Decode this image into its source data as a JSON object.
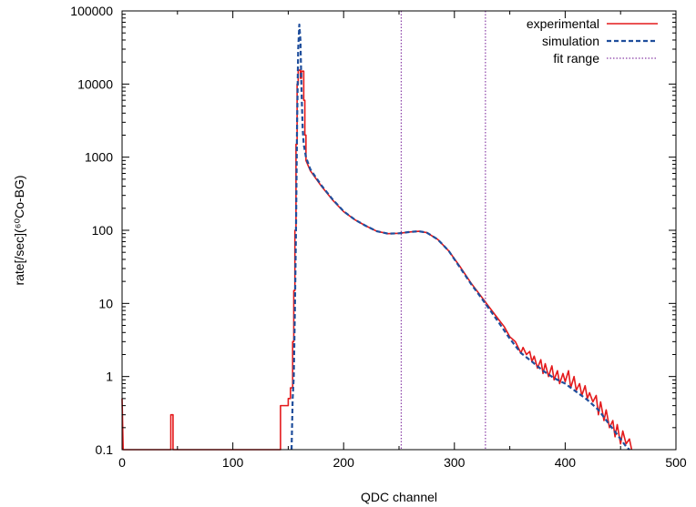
{
  "chart_data": {
    "type": "line",
    "xlabel": "QDC channel",
    "ylabel": "rate[/sec](⁶⁰Co-BG)",
    "xlim": [
      0,
      500
    ],
    "ylim": [
      0.1,
      100000
    ],
    "yscale": "log",
    "grid": false,
    "legend_position": "top-right",
    "x_ticks": [
      "0",
      "100",
      "200",
      "300",
      "400",
      "500"
    ],
    "y_ticks": [
      "0.1",
      "1",
      "10",
      "100",
      "1000",
      "10000",
      "100000"
    ],
    "colors": {
      "experimental": "#e41a1c",
      "simulation": "#1f4e9c",
      "fit_range": "#8a3fa6"
    },
    "series": [
      {
        "name": "experimental",
        "style": "solid-step",
        "points": [
          [
            0,
            0.5
          ],
          [
            1,
            0.1
          ],
          [
            44,
            0.1
          ],
          [
            44,
            0.3
          ],
          [
            46,
            0.3
          ],
          [
            46,
            0.1
          ],
          [
            143,
            0.1
          ],
          [
            143,
            0.4
          ],
          [
            150,
            0.4
          ],
          [
            150,
            0.5
          ],
          [
            152,
            0.5
          ],
          [
            152,
            0.7
          ],
          [
            154,
            0.7
          ],
          [
            154,
            3
          ],
          [
            155,
            3
          ],
          [
            155,
            15
          ],
          [
            156,
            15
          ],
          [
            156,
            100
          ],
          [
            157,
            100
          ],
          [
            157,
            1500
          ],
          [
            158,
            1500
          ],
          [
            158,
            10000
          ],
          [
            159,
            10000
          ],
          [
            159,
            15500
          ],
          [
            161,
            15500
          ],
          [
            161,
            12000
          ],
          [
            162,
            12000
          ],
          [
            162,
            15000
          ],
          [
            164,
            15000
          ],
          [
            164,
            6000
          ],
          [
            165,
            6000
          ],
          [
            165,
            2000
          ],
          [
            166,
            2000
          ],
          [
            166,
            900
          ],
          [
            170,
            650
          ],
          [
            180,
            400
          ],
          [
            190,
            260
          ],
          [
            200,
            180
          ],
          [
            210,
            140
          ],
          [
            220,
            115
          ],
          [
            230,
            97
          ],
          [
            240,
            90
          ],
          [
            250,
            91
          ],
          [
            260,
            95
          ],
          [
            268,
            97
          ],
          [
            275,
            93
          ],
          [
            285,
            75
          ],
          [
            295,
            52
          ],
          [
            305,
            32
          ],
          [
            315,
            19
          ],
          [
            325,
            12
          ],
          [
            330,
            9.5
          ],
          [
            340,
            6
          ],
          [
            345,
            4.8
          ],
          [
            350,
            3.5
          ],
          [
            355,
            3
          ],
          [
            360,
            2.1
          ],
          [
            362,
            2.5
          ],
          [
            365,
            2
          ],
          [
            368,
            2.2
          ],
          [
            370,
            1.6
          ],
          [
            372,
            1.9
          ],
          [
            375,
            1.3
          ],
          [
            378,
            1.7
          ],
          [
            380,
            1.1
          ],
          [
            382,
            1.5
          ],
          [
            385,
            1.0
          ],
          [
            388,
            1.4
          ],
          [
            390,
            0.9
          ],
          [
            393,
            1.2
          ],
          [
            395,
            0.8
          ],
          [
            398,
            1.1
          ],
          [
            400,
            0.85
          ],
          [
            403,
            1.2
          ],
          [
            405,
            0.7
          ],
          [
            408,
            1.0
          ],
          [
            410,
            0.65
          ],
          [
            413,
            0.8
          ],
          [
            415,
            0.55
          ],
          [
            418,
            0.75
          ],
          [
            420,
            0.5
          ],
          [
            422,
            0.6
          ],
          [
            425,
            0.45
          ],
          [
            428,
            0.55
          ],
          [
            430,
            0.3
          ],
          [
            432,
            0.45
          ],
          [
            435,
            0.25
          ],
          [
            437,
            0.35
          ],
          [
            440,
            0.2
          ],
          [
            443,
            0.25
          ],
          [
            445,
            0.15
          ],
          [
            447,
            0.22
          ],
          [
            450,
            0.12
          ],
          [
            452,
            0.18
          ],
          [
            455,
            0.12
          ],
          [
            458,
            0.14
          ],
          [
            460,
            0.1
          ]
        ]
      },
      {
        "name": "simulation",
        "style": "dashed",
        "points": [
          [
            153,
            0.1
          ],
          [
            154,
            0.5
          ],
          [
            155,
            1
          ],
          [
            156,
            8
          ],
          [
            157,
            100
          ],
          [
            158,
            3000
          ],
          [
            159,
            30000
          ],
          [
            160,
            65000
          ],
          [
            161,
            40000
          ],
          [
            162,
            8000
          ],
          [
            163,
            2500
          ],
          [
            164,
            1500
          ],
          [
            166,
            1000
          ],
          [
            170,
            680
          ],
          [
            180,
            410
          ],
          [
            190,
            265
          ],
          [
            200,
            182
          ],
          [
            210,
            140
          ],
          [
            220,
            115
          ],
          [
            230,
            97
          ],
          [
            240,
            90
          ],
          [
            250,
            91
          ],
          [
            260,
            95
          ],
          [
            268,
            97
          ],
          [
            275,
            93
          ],
          [
            285,
            75
          ],
          [
            295,
            52
          ],
          [
            305,
            31
          ],
          [
            315,
            18.5
          ],
          [
            325,
            11.5
          ],
          [
            330,
            9
          ],
          [
            340,
            5.5
          ],
          [
            350,
            3.3
          ],
          [
            360,
            2.1
          ],
          [
            370,
            1.6
          ],
          [
            380,
            1.2
          ],
          [
            390,
            0.95
          ],
          [
            400,
            0.8
          ],
          [
            410,
            0.62
          ],
          [
            420,
            0.48
          ],
          [
            430,
            0.35
          ],
          [
            440,
            0.22
          ],
          [
            450,
            0.14
          ],
          [
            455,
            0.11
          ],
          [
            458,
            0.1
          ]
        ]
      }
    ],
    "fit_range": {
      "name": "fit range",
      "x": [
        252,
        328
      ]
    }
  }
}
